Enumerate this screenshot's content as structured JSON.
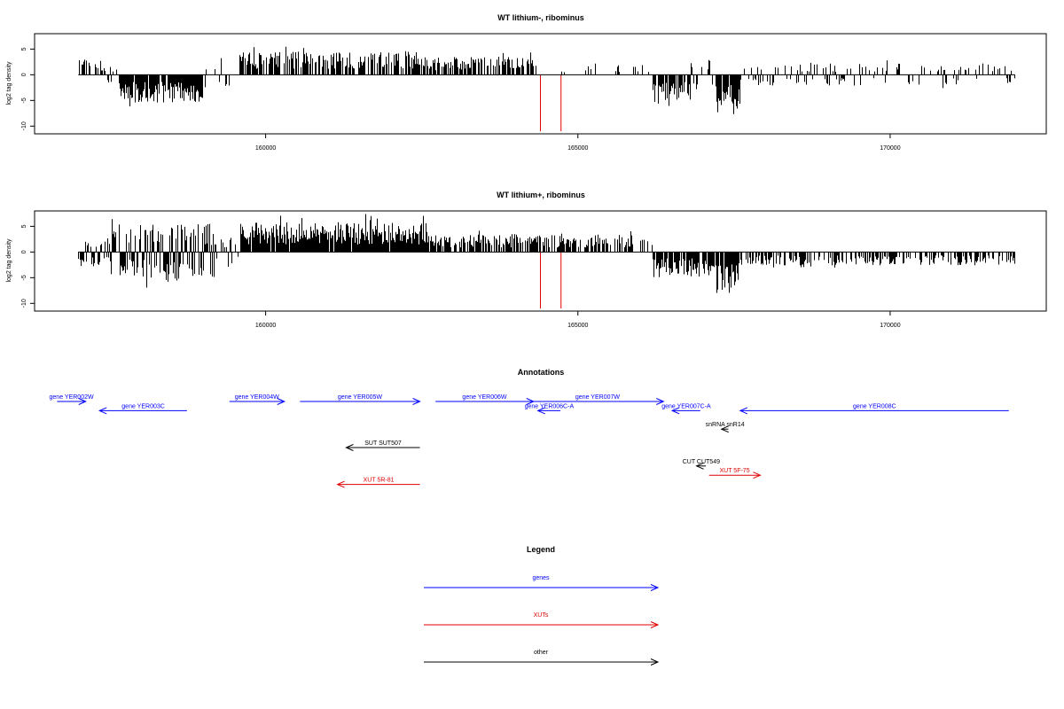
{
  "chart_data": [
    {
      "type": "bar",
      "title": "WT lithium-, ribominus",
      "ylabel": "log2 tag density",
      "xlim": [
        156300,
        172500
      ],
      "ylim": [
        -11.5,
        8
      ],
      "x_ticks": [
        160000,
        165000,
        170000
      ],
      "y_ticks": [
        5,
        0,
        -5,
        -10
      ],
      "x_tick_labels": [
        "160000",
        "165000",
        "170000"
      ],
      "y_tick_labels": [
        "5",
        "0",
        "-5",
        "-10"
      ],
      "grid": false,
      "series": [
        {
          "style": "density_profile",
          "profile": [
            {
              "from": 157000,
              "to": 157400,
              "kind": "pos",
              "amp": 3.2,
              "density": 0.6
            },
            {
              "from": 157400,
              "to": 157650,
              "kind": "both",
              "amp": 2.0,
              "density": 0.5
            },
            {
              "from": 157650,
              "to": 159000,
              "kind": "neg",
              "amp": 5.5,
              "density": 0.95
            },
            {
              "from": 159000,
              "to": 159600,
              "kind": "both",
              "amp": 3.0,
              "density": 0.3
            },
            {
              "from": 159600,
              "to": 162500,
              "kind": "pos",
              "amp": 4.5,
              "density": 0.7
            },
            {
              "from": 162500,
              "to": 164300,
              "kind": "pos",
              "amp": 3.5,
              "density": 0.65
            },
            {
              "from": 164300,
              "to": 165600,
              "kind": "pos",
              "amp": 1.8,
              "density": 0.12
            },
            {
              "from": 165600,
              "to": 166200,
              "kind": "pos",
              "amp": 2.0,
              "density": 0.25
            },
            {
              "from": 166200,
              "to": 166800,
              "kind": "neg",
              "amp": 5.0,
              "density": 0.8
            },
            {
              "from": 166800,
              "to": 167200,
              "kind": "both",
              "amp": 3.0,
              "density": 0.4
            },
            {
              "from": 167200,
              "to": 167600,
              "kind": "neg",
              "amp": 8.0,
              "density": 0.95
            },
            {
              "from": 167600,
              "to": 170500,
              "kind": "both",
              "amp": 2.2,
              "density": 0.35
            },
            {
              "from": 170500,
              "to": 172000,
              "kind": "both",
              "amp": 2.0,
              "density": 0.3
            }
          ]
        },
        {
          "style": "marker",
          "color": "#e00000",
          "x": [
            164400,
            164730
          ],
          "y": -11
        }
      ]
    },
    {
      "type": "bar",
      "title": "WT lithium+, ribominus",
      "ylabel": "log2 tag density",
      "xlim": [
        156300,
        172500
      ],
      "ylim": [
        -11.5,
        8
      ],
      "x_ticks": [
        160000,
        165000,
        170000
      ],
      "y_ticks": [
        5,
        0,
        -5,
        -10
      ],
      "x_tick_labels": [
        "160000",
        "165000",
        "170000"
      ],
      "y_tick_labels": [
        "5",
        "0",
        "-5",
        "-10"
      ],
      "grid": false,
      "series": [
        {
          "style": "density_profile",
          "profile": [
            {
              "from": 157000,
              "to": 157500,
              "kind": "both",
              "amp": 2.8,
              "density": 0.6
            },
            {
              "from": 157500,
              "to": 159200,
              "kind": "both",
              "amp": 5.5,
              "density": 0.9
            },
            {
              "from": 159200,
              "to": 159600,
              "kind": "both",
              "amp": 3.0,
              "density": 0.4
            },
            {
              "from": 159600,
              "to": 162600,
              "kind": "pos",
              "amp": 5.8,
              "density": 0.97
            },
            {
              "from": 162600,
              "to": 164400,
              "kind": "pos",
              "amp": 3.5,
              "density": 0.8
            },
            {
              "from": 164400,
              "to": 166200,
              "kind": "pos",
              "amp": 3.5,
              "density": 0.55
            },
            {
              "from": 166200,
              "to": 167200,
              "kind": "neg",
              "amp": 5.0,
              "density": 0.85
            },
            {
              "from": 167200,
              "to": 167600,
              "kind": "neg",
              "amp": 8.5,
              "density": 0.95
            },
            {
              "from": 167600,
              "to": 172000,
              "kind": "neg",
              "amp": 2.6,
              "density": 0.55
            }
          ]
        },
        {
          "style": "marker",
          "color": "#e00000",
          "x": [
            164400,
            164730
          ],
          "y": -11
        }
      ]
    },
    {
      "type": "annotation_track",
      "title": "Annotations",
      "features": [
        {
          "label": "gene YER002W",
          "color": "#0000ff",
          "start": 156660,
          "end": 157120,
          "row": 0,
          "arrow": "right"
        },
        {
          "label": "gene YER003C",
          "color": "#0000ff",
          "start": 157340,
          "end": 158740,
          "row": 1,
          "arrow": "left"
        },
        {
          "label": "gene YER004W",
          "color": "#0000ff",
          "start": 159420,
          "end": 160300,
          "row": 0,
          "arrow": "right"
        },
        {
          "label": "gene YER005W",
          "color": "#0000ff",
          "start": 160550,
          "end": 162470,
          "row": 0,
          "arrow": "right"
        },
        {
          "label": "gene YER006W",
          "color": "#0000ff",
          "start": 162720,
          "end": 164290,
          "row": 0,
          "arrow": "right"
        },
        {
          "label": "gene YER006C-A",
          "color": "#0000ff",
          "start": 164360,
          "end": 164720,
          "row": 1,
          "arrow": "left"
        },
        {
          "label": "gene YER007W",
          "color": "#0000ff",
          "start": 164260,
          "end": 166370,
          "row": 0,
          "arrow": "right"
        },
        {
          "label": "gene YER007C-A",
          "color": "#0000ff",
          "start": 166510,
          "end": 166960,
          "row": 1,
          "arrow": "left"
        },
        {
          "label": "gene YER008C",
          "color": "#0000ff",
          "start": 167600,
          "end": 171900,
          "row": 1,
          "arrow": "left"
        },
        {
          "label": "snRNA snR14",
          "color": "#000000",
          "start": 167300,
          "end": 167410,
          "row": 3,
          "arrow": "left"
        },
        {
          "label": "SUT SUT507",
          "color": "#000000",
          "start": 161290,
          "end": 162470,
          "row": 5,
          "arrow": "left"
        },
        {
          "label": "CUT CUT549",
          "color": "#000000",
          "start": 166900,
          "end": 167050,
          "row": 7,
          "arrow": "left"
        },
        {
          "label": "XUT 5F-75",
          "color": "#e00000",
          "start": 167100,
          "end": 167920,
          "row": 8,
          "arrow": "right"
        },
        {
          "label": "XUT 5R-81",
          "color": "#e00000",
          "start": 161150,
          "end": 162470,
          "row": 9,
          "arrow": "left"
        }
      ]
    },
    {
      "type": "legend",
      "title": "Legend",
      "entries": [
        {
          "label": "genes",
          "color": "#0000ff"
        },
        {
          "label": "XUTs",
          "color": "#e00000"
        },
        {
          "label": "other",
          "color": "#000000"
        }
      ]
    }
  ]
}
